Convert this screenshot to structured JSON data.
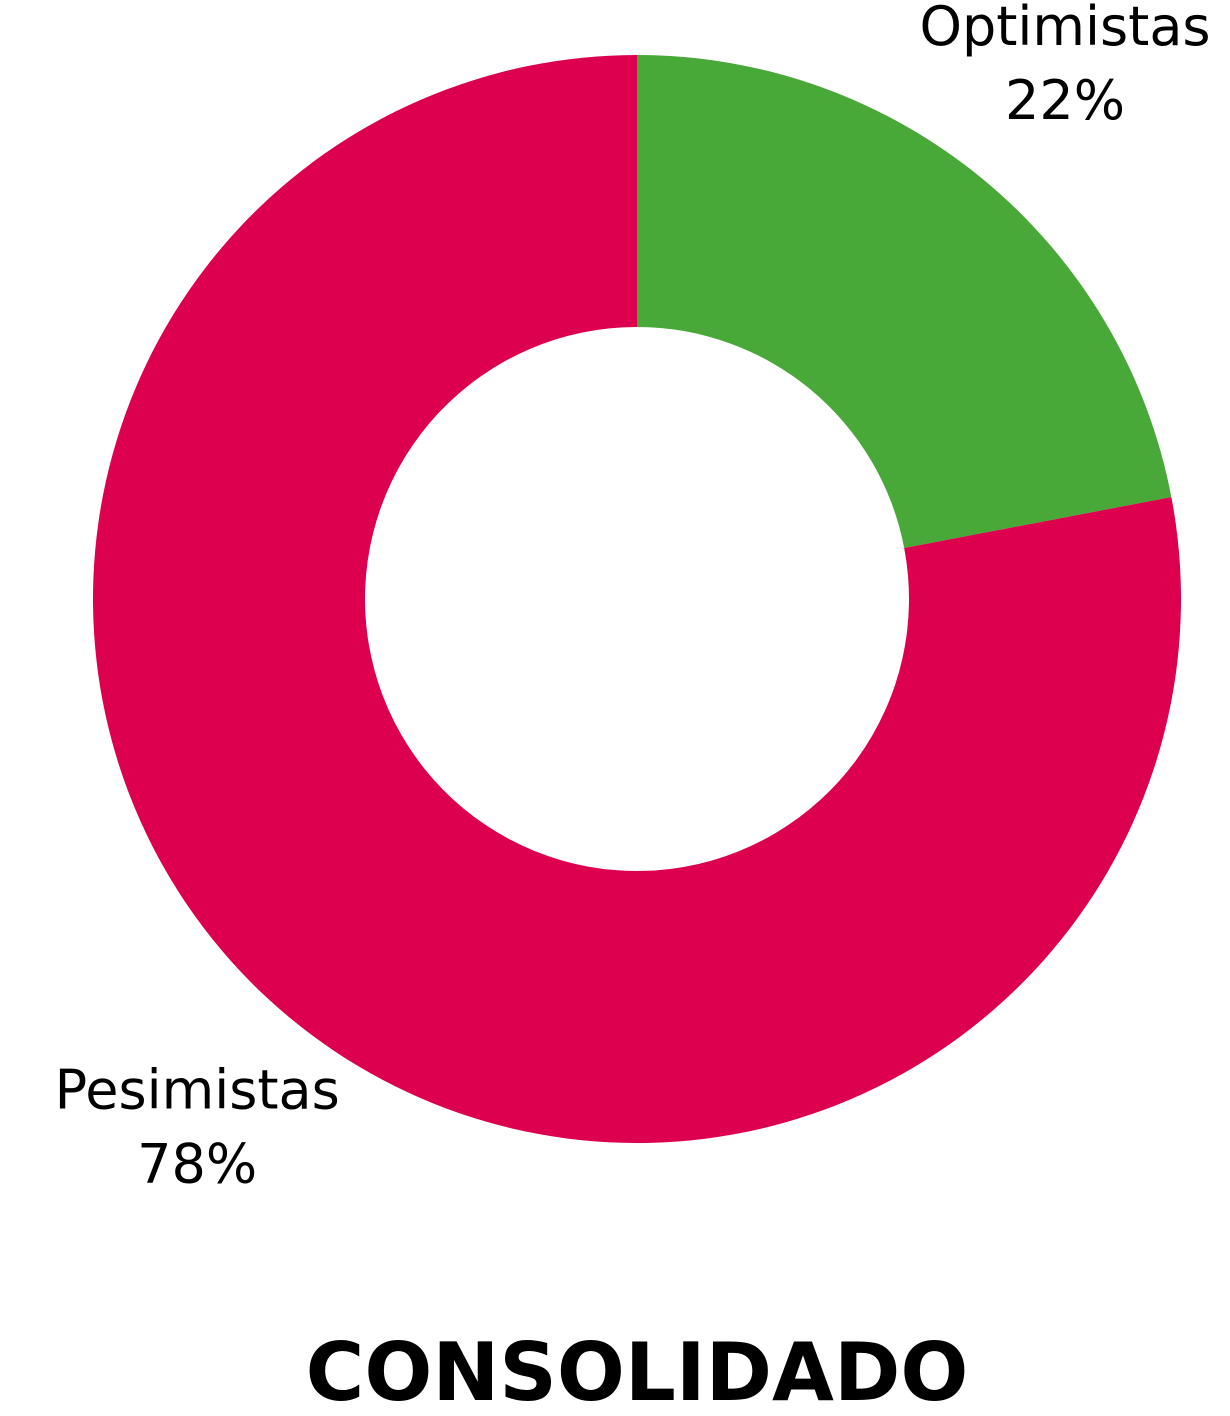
{
  "chart_data": {
    "type": "donut",
    "title": "CONSOLIDADO",
    "categories": [
      "Optimistas",
      "Pesimistas"
    ],
    "values": [
      22,
      78
    ],
    "value_labels": [
      "22%",
      "78%"
    ],
    "colors": [
      "#48a838",
      "#dc004e"
    ]
  }
}
